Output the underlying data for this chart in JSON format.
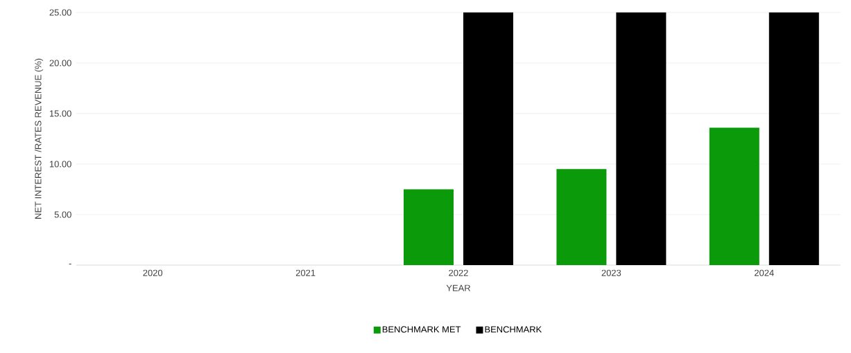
{
  "chart_data": {
    "type": "bar",
    "xlabel": "YEAR",
    "ylabel": "NET INTEREST /RATES REVENUE (%)",
    "categories": [
      "2020",
      "2021",
      "2022",
      "2023",
      "2024"
    ],
    "series": [
      {
        "name": "BENCHMARK MET",
        "color": "#0a9a0a",
        "values": [
          null,
          null,
          7.5,
          9.5,
          13.6
        ]
      },
      {
        "name": "BENCHMARK",
        "color": "#000000",
        "values": [
          null,
          null,
          25,
          25,
          25
        ]
      }
    ],
    "ylim": [
      0,
      25
    ],
    "yticks": [
      {
        "value": 0,
        "label": "-"
      },
      {
        "value": 5,
        "label": "5.00"
      },
      {
        "value": 10,
        "label": "10.00"
      },
      {
        "value": 15,
        "label": "15.00"
      },
      {
        "value": 20,
        "label": "20.00"
      },
      {
        "value": 25,
        "label": "25.00"
      }
    ],
    "grid": "y",
    "legend": "bottom"
  }
}
